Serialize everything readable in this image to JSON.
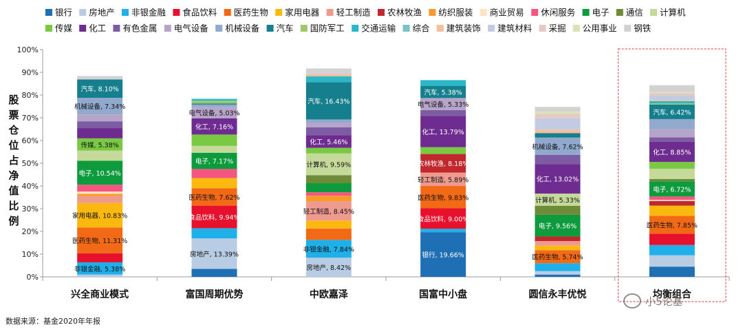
{
  "source_note": "数据来源：基金2020年年报",
  "watermark_text": "小5论基",
  "y_axis_title": "股票仓位占净值比例",
  "chart_data": {
    "type": "bar",
    "stacked": true,
    "ylim": [
      0,
      100
    ],
    "y_ticks": [
      "0%",
      "10%",
      "20%",
      "30%",
      "40%",
      "50%",
      "60%",
      "70%",
      "80%",
      "90%",
      "100%"
    ],
    "grid": false,
    "legend_position": "top",
    "highlight_category": "均衡组合",
    "categories": [
      "兴全商业模式",
      "富国周期优势",
      "中欧嘉泽",
      "国富中小盘",
      "圆信永丰优悦",
      "均衡组合"
    ],
    "series": [
      {
        "name": "银行",
        "color": "#1f6fb5",
        "values": [
          0,
          3.5,
          0,
          19.66,
          1,
          4.5
        ]
      },
      {
        "name": "房地产",
        "color": "#b8cde4",
        "values": [
          1,
          13.39,
          8.42,
          0,
          1.5,
          5
        ]
      },
      {
        "name": "非银金融",
        "color": "#1fb0ea",
        "values": [
          5.38,
          4.5,
          7.84,
          1.5,
          3.5,
          4.5
        ]
      },
      {
        "name": "食品饮料",
        "color": "#e8112d",
        "values": [
          4,
          9.94,
          0,
          9,
          0,
          5
        ]
      },
      {
        "name": "医药生物",
        "color": "#f26a16",
        "values": [
          11.31,
          7.62,
          5,
          9.83,
          5.74,
          7.85
        ]
      },
      {
        "name": "家用电器",
        "color": "#fbb80f",
        "values": [
          10.83,
          4.5,
          3.5,
          0,
          2,
          4.5
        ]
      },
      {
        "name": "轻工制造",
        "color": "#ee9a8f",
        "values": [
          3,
          0,
          8.45,
          5.89,
          2,
          0
        ]
      },
      {
        "name": "农林牧渔",
        "color": "#c0282d",
        "values": [
          0,
          0,
          0,
          8.18,
          2,
          2
        ]
      },
      {
        "name": "纺织服装",
        "color": "#f89a2b",
        "values": [
          1,
          0,
          2.5,
          0,
          0,
          0
        ]
      },
      {
        "name": "商业贸易",
        "color": "#fde5c3",
        "values": [
          1,
          0,
          0,
          0,
          0,
          0.5
        ]
      },
      {
        "name": "休闲服务",
        "color": "#f5567f",
        "values": [
          3,
          4,
          1.5,
          0,
          0,
          1.5
        ]
      },
      {
        "name": "电子",
        "color": "#0d9b3e",
        "values": [
          10.54,
          7.17,
          4,
          0,
          9.56,
          6.72
        ]
      },
      {
        "name": "通信",
        "color": "#6e8b3a",
        "values": [
          0,
          0,
          3.5,
          0,
          4,
          1
        ]
      },
      {
        "name": "计算机",
        "color": "#c5d99a",
        "values": [
          4.5,
          3,
          9.59,
          0,
          5.33,
          4.5
        ]
      },
      {
        "name": "传媒",
        "color": "#7ac943",
        "values": [
          5.38,
          5,
          2.5,
          3,
          0,
          3
        ]
      },
      {
        "name": "化工",
        "color": "#6e2c91",
        "values": [
          4.5,
          7.16,
          5.46,
          13.79,
          13.02,
          8.85
        ]
      },
      {
        "name": "有色金属",
        "color": "#7d5ca3",
        "values": [
          3,
          0,
          3.5,
          2.5,
          4,
          2
        ]
      },
      {
        "name": "电气设备",
        "color": "#b6a5c9",
        "values": [
          3,
          5.03,
          2,
          5.33,
          0,
          3.5
        ]
      },
      {
        "name": "机械设备",
        "color": "#90a9cc",
        "values": [
          7.34,
          1,
          1.5,
          0,
          7.62,
          4.5
        ]
      },
      {
        "name": "汽车",
        "color": "#167f8e",
        "values": [
          8.1,
          0.5,
          16.43,
          5.38,
          2,
          6.42
        ]
      },
      {
        "name": "国防军工",
        "color": "#9dc96c",
        "values": [
          0,
          1.2,
          0,
          0,
          0,
          0.5
        ]
      },
      {
        "name": "交通运输",
        "color": "#2ab8c8",
        "values": [
          0,
          0.8,
          2.5,
          2.5,
          0,
          1
        ]
      },
      {
        "name": "综合",
        "color": "#77c3c5",
        "values": [
          0,
          0,
          0,
          0,
          0,
          0
        ]
      },
      {
        "name": "建筑装饰",
        "color": "#f6be9c",
        "values": [
          0,
          0,
          1,
          0,
          1.5,
          0.5
        ]
      },
      {
        "name": "建筑材料",
        "color": "#c3cbe2",
        "values": [
          0,
          0,
          0,
          0,
          5,
          2
        ]
      },
      {
        "name": "采掘",
        "color": "#e6c8c4",
        "values": [
          0,
          0,
          0,
          0,
          2,
          1
        ]
      },
      {
        "name": "公用事业",
        "color": "#d7e5b4",
        "values": [
          0,
          0,
          0,
          0,
          1,
          0.5
        ]
      },
      {
        "name": "钢铁",
        "color": "#d2d2d2",
        "values": [
          1.5,
          0,
          2.5,
          0,
          2,
          3
        ]
      }
    ],
    "data_labels": [
      [
        {
          "series": "非银金融",
          "text": "非银金融, 5.38%"
        },
        {
          "series": "医药生物",
          "text": "医药生物, 11.31%"
        },
        {
          "series": "家用电器",
          "text": "家用电器, 10.83%"
        },
        {
          "series": "电子",
          "text": "电子, 10.54%"
        },
        {
          "series": "传媒",
          "text": "传媒, 5.38%"
        },
        {
          "series": "机械设备",
          "text": "机械设备, 7.34%"
        },
        {
          "series": "汽车",
          "text": "汽车, 8.10%"
        }
      ],
      [
        {
          "series": "房地产",
          "text": "房地产, 13.39%"
        },
        {
          "series": "食品饮料",
          "text": "食品饮料, 9.94%"
        },
        {
          "series": "医药生物",
          "text": "医药生物, 7.62%"
        },
        {
          "series": "电子",
          "text": "电子, 7.17%"
        },
        {
          "series": "化工",
          "text": "化工, 7.16%"
        },
        {
          "series": "电气设备",
          "text": "电气设备, 5.03%"
        }
      ],
      [
        {
          "series": "房地产",
          "text": "房地产, 8.42%"
        },
        {
          "series": "非银金融",
          "text": "非银金融, 7.84%"
        },
        {
          "series": "轻工制造",
          "text": "轻工制造, 8.45%"
        },
        {
          "series": "计算机",
          "text": "计算机, 9.59%"
        },
        {
          "series": "化工",
          "text": "化工, 5.46%"
        },
        {
          "series": "汽车",
          "text": "汽车, 16.43%"
        }
      ],
      [
        {
          "series": "银行",
          "text": "银行, 19.66%"
        },
        {
          "series": "食品饮料",
          "text": "食品饮料, 9.00%"
        },
        {
          "series": "医药生物",
          "text": "医药生物, 9.83%"
        },
        {
          "series": "轻工制造",
          "text": "轻工制造, 5.89%"
        },
        {
          "series": "农林牧渔",
          "text": "农林牧渔, 8.18%"
        },
        {
          "series": "化工",
          "text": "化工, 13.79%"
        },
        {
          "series": "电气设备",
          "text": "电气设备, 5.33%"
        },
        {
          "series": "汽车",
          "text": "汽车, 5.38%"
        }
      ],
      [
        {
          "series": "医药生物",
          "text": "医药生物, 5.74%"
        },
        {
          "series": "电子",
          "text": "电子, 9.56%"
        },
        {
          "series": "计算机",
          "text": "计算机, 5.33%"
        },
        {
          "series": "化工",
          "text": "化工, 13.02%"
        },
        {
          "series": "机械设备",
          "text": "机械设备, 7.62%"
        }
      ],
      [
        {
          "series": "医药生物",
          "text": "医药生物, 7.85%"
        },
        {
          "series": "电子",
          "text": "电子, 6.72%"
        },
        {
          "series": "化工",
          "text": "化工, 8.85%"
        },
        {
          "series": "汽车",
          "text": "汽车, 6.42%"
        }
      ]
    ]
  }
}
